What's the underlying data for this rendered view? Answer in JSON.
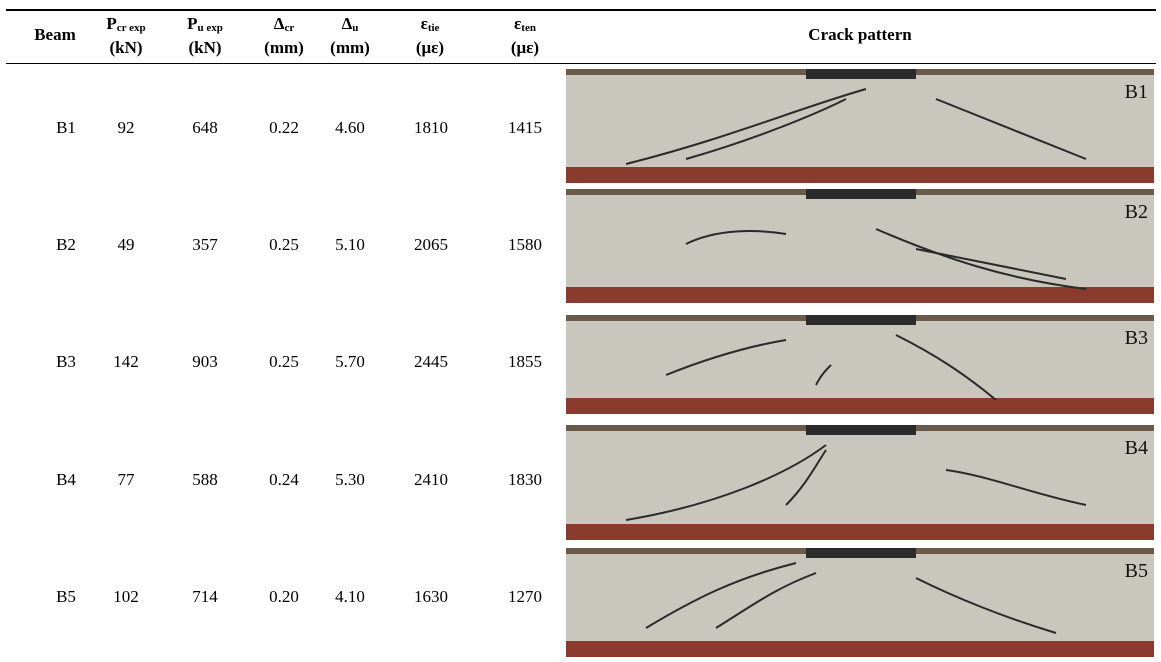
{
  "table": {
    "header": [
      {
        "main": "Beam"
      },
      {
        "main": "P",
        "sub": "cr exp",
        "unit": "(kN)"
      },
      {
        "main": "P",
        "sub": "u exp",
        "unit": "(kN)"
      },
      {
        "main": "Δ",
        "sub": "cr",
        "unit": "(mm)"
      },
      {
        "main": "Δ",
        "sub": "u",
        "unit": "(mm)"
      },
      {
        "main": "ε",
        "sub": "tie",
        "unit": "(με)"
      },
      {
        "main": "ε",
        "sub": "ten",
        "unit": "(με)"
      },
      {
        "main": "Crack pattern"
      }
    ],
    "rows": [
      [
        "B1",
        "92",
        "648",
        "0.22",
        "4.60",
        "1810",
        "1415"
      ],
      [
        "B2",
        "49",
        "357",
        "0.25",
        "5.10",
        "2065",
        "1580"
      ],
      [
        "B3",
        "142",
        "903",
        "0.25",
        "5.70",
        "2445",
        "1855"
      ],
      [
        "B4",
        "77",
        "588",
        "0.24",
        "5.30",
        "2410",
        "1830"
      ],
      [
        "B5",
        "102",
        "714",
        "0.20",
        "4.10",
        "1630",
        "1270"
      ]
    ],
    "photo_labels": [
      "B1",
      "B2",
      "B3",
      "B4",
      "B5"
    ]
  }
}
